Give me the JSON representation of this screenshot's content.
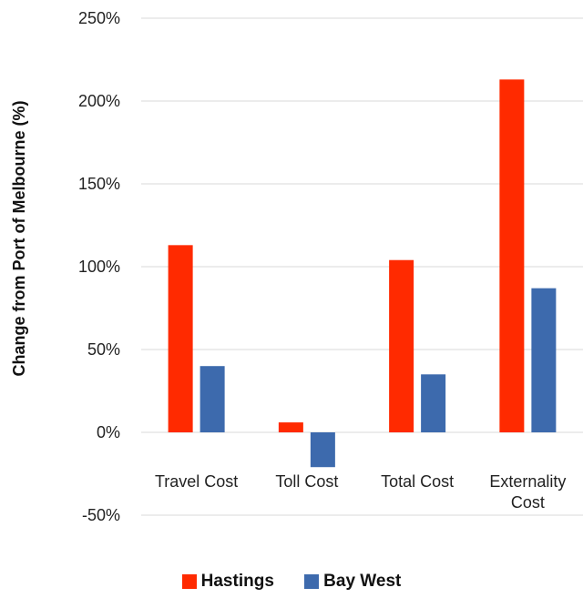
{
  "chart_data": {
    "type": "bar",
    "categories": [
      "Travel Cost",
      "Toll Cost",
      "Total Cost",
      "Externality Cost"
    ],
    "series": [
      {
        "name": "Hastings",
        "color": "#ff2a00",
        "values": [
          113,
          6,
          104,
          213
        ]
      },
      {
        "name": "Bay West",
        "color": "#3d6aad",
        "values": [
          40,
          -21,
          35,
          87
        ]
      }
    ],
    "ylabel": "Change from Port of Melbourne (%)",
    "xlabel": "",
    "ylim": [
      -50,
      250
    ],
    "yticks": [
      -50,
      0,
      50,
      100,
      150,
      200,
      250
    ],
    "tick_suffix": "%",
    "grid": true,
    "legend_position": "bottom"
  }
}
